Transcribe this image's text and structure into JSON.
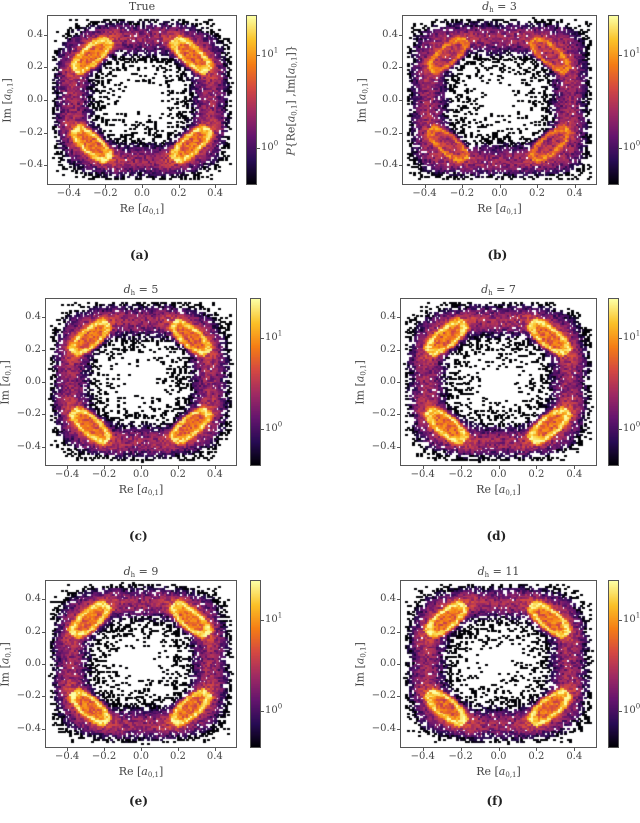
{
  "chart_data": [
    {
      "type": "heatmap",
      "panel_label": "(a)",
      "title": {
        "text": "True"
      },
      "xlabel": {
        "prefix": "Re [",
        "var": "a",
        "sub": "0,1",
        "suffix": "]"
      },
      "ylabel": {
        "prefix": "Im [",
        "var": "a",
        "sub": "0,1",
        "suffix": "]"
      },
      "colorbar_label": {
        "p": "P",
        "a1": "{Re[",
        "v1": "a",
        "s1": "0,1",
        "a2": "] ,Im[",
        "v2": "a",
        "s2": "0,1",
        "a3": "]}"
      },
      "xlim": [
        -0.52,
        0.52
      ],
      "ylim": [
        -0.52,
        0.52
      ],
      "xticks": [
        "−0.4",
        "−0.2",
        "0.0",
        "0.2",
        "0.4"
      ],
      "yticks": [
        "0.4",
        "0.2",
        "0.0",
        "−0.2",
        "−0.4"
      ],
      "colorbar": {
        "scale": "log",
        "colormap": "inferno",
        "range": [
          0.4,
          27
        ],
        "ticks": [
          {
            "base": "10",
            "exp": "1"
          },
          {
            "base": "10",
            "exp": "0"
          }
        ]
      }
    },
    {
      "type": "heatmap",
      "panel_label": "(b)",
      "title": {
        "var": "d",
        "sub": "h",
        "value": " = 3"
      },
      "xlabel": {
        "prefix": "Re [",
        "var": "a",
        "sub": "0,1",
        "suffix": "]"
      },
      "ylabel": {
        "prefix": "Im [",
        "var": "a",
        "sub": "0,1",
        "suffix": "]"
      },
      "xlim": [
        -0.52,
        0.52
      ],
      "ylim": [
        -0.52,
        0.52
      ],
      "xticks": [
        "−0.4",
        "−0.2",
        "0.0",
        "0.2",
        "0.4"
      ],
      "yticks": [
        "0.4",
        "0.2",
        "0.0",
        "−0.2",
        "−0.4"
      ],
      "colorbar": {
        "scale": "log",
        "colormap": "inferno",
        "range": [
          0.4,
          27
        ],
        "ticks": [
          {
            "base": "10",
            "exp": "1"
          },
          {
            "base": "10",
            "exp": "0"
          }
        ]
      }
    },
    {
      "type": "heatmap",
      "panel_label": "(c)",
      "title": {
        "var": "d",
        "sub": "h",
        "value": " = 5"
      },
      "xlabel": {
        "prefix": "Re [",
        "var": "a",
        "sub": "0,1",
        "suffix": "]"
      },
      "ylabel": {
        "prefix": "Im [",
        "var": "a",
        "sub": "0,1",
        "suffix": "]"
      },
      "xlim": [
        -0.52,
        0.52
      ],
      "ylim": [
        -0.52,
        0.52
      ],
      "xticks": [
        "−0.4",
        "−0.2",
        "0.0",
        "0.2",
        "0.4"
      ],
      "yticks": [
        "0.4",
        "0.2",
        "0.0",
        "−0.2",
        "−0.4"
      ],
      "colorbar": {
        "scale": "log",
        "colormap": "inferno",
        "range": [
          0.4,
          27
        ],
        "ticks": [
          {
            "base": "10",
            "exp": "1"
          },
          {
            "base": "10",
            "exp": "0"
          }
        ]
      }
    },
    {
      "type": "heatmap",
      "panel_label": "(d)",
      "title": {
        "var": "d",
        "sub": "h",
        "value": " = 7"
      },
      "xlabel": {
        "prefix": "Re [",
        "var": "a",
        "sub": "0,1",
        "suffix": "]"
      },
      "ylabel": {
        "prefix": "Im [",
        "var": "a",
        "sub": "0,1",
        "suffix": "]"
      },
      "xlim": [
        -0.52,
        0.52
      ],
      "ylim": [
        -0.52,
        0.52
      ],
      "xticks": [
        "−0.4",
        "−0.2",
        "0.0",
        "0.2",
        "0.4"
      ],
      "yticks": [
        "0.4",
        "0.2",
        "0.0",
        "−0.2",
        "−0.4"
      ],
      "colorbar": {
        "scale": "log",
        "colormap": "inferno",
        "range": [
          0.4,
          27
        ],
        "ticks": [
          {
            "base": "10",
            "exp": "1"
          },
          {
            "base": "10",
            "exp": "0"
          }
        ]
      }
    },
    {
      "type": "heatmap",
      "panel_label": "(e)",
      "title": {
        "var": "d",
        "sub": "h",
        "value": " = 9"
      },
      "xlabel": {
        "prefix": "Re [",
        "var": "a",
        "sub": "0,1",
        "suffix": "]"
      },
      "ylabel": {
        "prefix": "Im [",
        "var": "a",
        "sub": "0,1",
        "suffix": "]"
      },
      "xlim": [
        -0.52,
        0.52
      ],
      "ylim": [
        -0.52,
        0.52
      ],
      "xticks": [
        "−0.4",
        "−0.2",
        "0.0",
        "0.2",
        "0.4"
      ],
      "yticks": [
        "0.4",
        "0.2",
        "0.0",
        "−0.2",
        "−0.4"
      ],
      "colorbar": {
        "scale": "log",
        "colormap": "inferno",
        "range": [
          0.4,
          27
        ],
        "ticks": [
          {
            "base": "10",
            "exp": "1"
          },
          {
            "base": "10",
            "exp": "0"
          }
        ]
      }
    },
    {
      "type": "heatmap",
      "panel_label": "(f)",
      "title": {
        "var": "d",
        "sub": "h",
        "value": " = 11"
      },
      "xlabel": {
        "prefix": "Re [",
        "var": "a",
        "sub": "0,1",
        "suffix": "]"
      },
      "ylabel": {
        "prefix": "Im [",
        "var": "a",
        "sub": "0,1",
        "suffix": "]"
      },
      "xlim": [
        -0.52,
        0.52
      ],
      "ylim": [
        -0.52,
        0.52
      ],
      "xticks": [
        "−0.4",
        "−0.2",
        "0.0",
        "0.2",
        "0.4"
      ],
      "yticks": [
        "0.4",
        "0.2",
        "0.0",
        "−0.2",
        "−0.4"
      ],
      "colorbar": {
        "scale": "log",
        "colormap": "inferno",
        "range": [
          0.4,
          27
        ],
        "ticks": [
          {
            "base": "10",
            "exp": "1"
          },
          {
            "base": "10",
            "exp": "0"
          }
        ]
      }
    }
  ]
}
